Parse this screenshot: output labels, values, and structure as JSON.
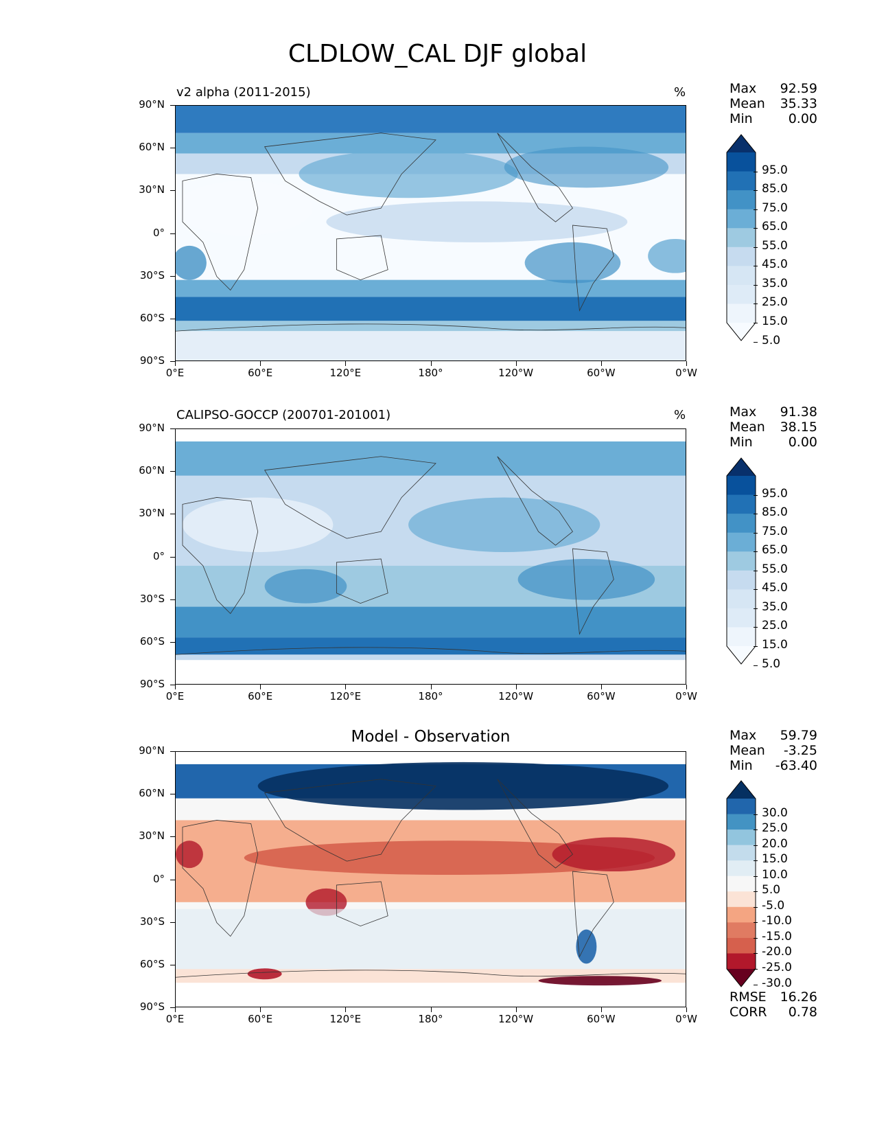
{
  "title": "CLDLOW_CAL DJF global",
  "x_ticks": [
    "0°E",
    "60°E",
    "120°E",
    "180°",
    "120°W",
    "60°W",
    "0°W"
  ],
  "y_ticks": [
    "90°N",
    "60°N",
    "30°N",
    "0°",
    "30°S",
    "60°S",
    "90°S"
  ],
  "stat_labels": {
    "max": "Max",
    "mean": "Mean",
    "min": "Min",
    "rmse": "RMSE",
    "corr": "CORR"
  },
  "panels": [
    {
      "title_left": "v2 alpha (2011-2015)",
      "units": "%",
      "stats": {
        "max": "92.59",
        "mean": "35.33",
        "min": "0.00"
      },
      "colorbar": {
        "labels": [
          "95.0",
          "85.0",
          "75.0",
          "65.0",
          "55.0",
          "45.0",
          "35.0",
          "25.0",
          "15.0",
          "5.0"
        ],
        "colors": [
          "#08306b",
          "#08519c",
          "#2171b5",
          "#4292c6",
          "#6baed6",
          "#9ecae1",
          "#c6dbef",
          "#d6e6f4",
          "#deebf7",
          "#eef5fc",
          "#f7fbff"
        ]
      }
    },
    {
      "title_left": "CALIPSO-GOCCP (200701-201001)",
      "units": "%",
      "stats": {
        "max": "91.38",
        "mean": "38.15",
        "min": "0.00"
      },
      "colorbar": {
        "labels": [
          "95.0",
          "85.0",
          "75.0",
          "65.0",
          "55.0",
          "45.0",
          "35.0",
          "25.0",
          "15.0",
          "5.0"
        ],
        "colors": [
          "#08306b",
          "#08519c",
          "#2171b5",
          "#4292c6",
          "#6baed6",
          "#9ecae1",
          "#c6dbef",
          "#d6e6f4",
          "#deebf7",
          "#eef5fc",
          "#f7fbff"
        ]
      }
    },
    {
      "title_center": "Model - Observation",
      "stats": {
        "max": "59.79",
        "mean": "-3.25",
        "min": "-63.40"
      },
      "colorbar": {
        "labels": [
          "30.0",
          "25.0",
          "20.0",
          "15.0",
          "10.0",
          "5.0",
          "-5.0",
          "-10.0",
          "-15.0",
          "-20.0",
          "-25.0",
          "-30.0"
        ],
        "colors": [
          "#053061",
          "#2166ac",
          "#4393c3",
          "#92c5de",
          "#c3dcec",
          "#e1edf4",
          "#f7f7f7",
          "#fbe3d6",
          "#f4a582",
          "#e07b62",
          "#d6604d",
          "#b2182b",
          "#67001f"
        ]
      },
      "rmse": "16.26",
      "corr": "0.78"
    }
  ],
  "chart_data": [
    {
      "type": "heatmap",
      "title": "v2 alpha (2011-2015)",
      "xlim": [
        0,
        360
      ],
      "ylim": [
        -90,
        90
      ],
      "units": "%",
      "levels": [
        5,
        15,
        25,
        35,
        45,
        55,
        65,
        75,
        85,
        95
      ],
      "summary": {
        "max": 92.59,
        "mean": 35.33,
        "min": 0.0
      }
    },
    {
      "type": "heatmap",
      "title": "CALIPSO-GOCCP (200701-201001)",
      "xlim": [
        0,
        360
      ],
      "ylim": [
        -90,
        90
      ],
      "units": "%",
      "levels": [
        5,
        15,
        25,
        35,
        45,
        55,
        65,
        75,
        85,
        95
      ],
      "summary": {
        "max": 91.38,
        "mean": 38.15,
        "min": 0.0
      }
    },
    {
      "type": "heatmap",
      "title": "Model - Observation",
      "xlim": [
        0,
        360
      ],
      "ylim": [
        -90,
        90
      ],
      "levels": [
        -30,
        -25,
        -20,
        -15,
        -10,
        -5,
        5,
        10,
        15,
        20,
        25,
        30
      ],
      "summary": {
        "max": 59.79,
        "mean": -3.25,
        "min": -63.4,
        "rmse": 16.26,
        "corr": 0.78
      }
    }
  ]
}
